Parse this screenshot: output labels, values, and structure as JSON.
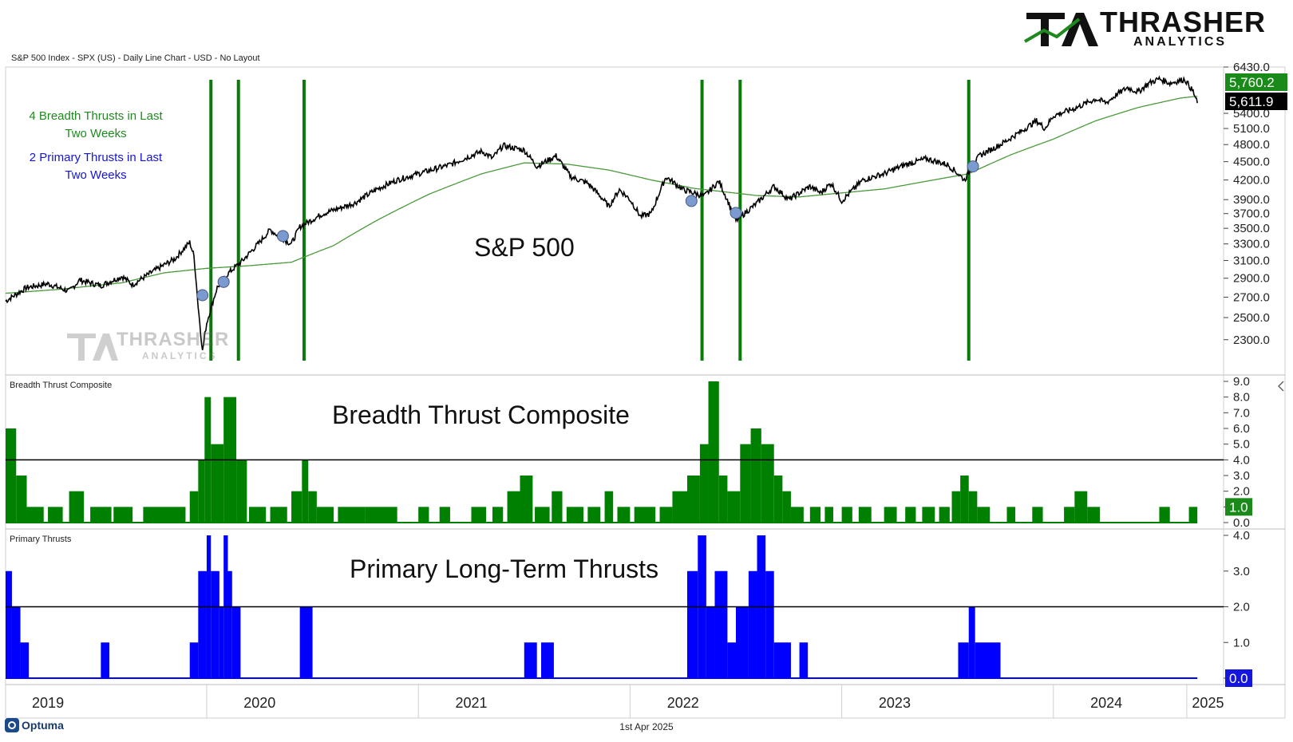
{
  "header": {
    "caption": "S&P 500 Index - SPX (US) - Daily Line Chart - USD - No Layout",
    "logo_main": "THRASHER",
    "logo_sub": "ANALYTICS",
    "logo_icon": "ta-monogram-icon"
  },
  "footer": {
    "date": "1st Apr 2025",
    "brand": "Optuma"
  },
  "colors": {
    "price": "#000000",
    "ma": "#4a9a3a",
    "breadth": "#008000",
    "primary": "#0000ff",
    "signal": "#0a7a0a",
    "dot": "#7a9ad0"
  },
  "chart_data": [
    {
      "type": "line",
      "panel": "price",
      "title": "S&P 500",
      "ylim": [
        2100,
        6430
      ],
      "y_ticks": [
        "6430.0",
        "5400.0",
        "5100.0",
        "4800.0",
        "4500.0",
        "4200.0",
        "3900.0",
        "3700.0",
        "3500.0",
        "3300.0",
        "3100.0",
        "2900.0",
        "2700.0",
        "2500.0",
        "2300.0"
      ],
      "last_labels": [
        {
          "value": "5,760.2",
          "series": "200-day moving average"
        },
        {
          "value": "5,611.9",
          "series": "S&P 500"
        }
      ],
      "annotations": [
        "4 Breadth Thrusts in Last\nTwo Weeks",
        "2 Primary Thrusts in Last\nTwo Weeks"
      ],
      "signal_lines_t": [
        2019.72,
        2019.85,
        2020.16,
        2022.04,
        2022.22,
        2023.3
      ],
      "dots": [
        {
          "t": 2019.68,
          "v": 2720
        },
        {
          "t": 2019.78,
          "v": 2860
        },
        {
          "t": 2020.06,
          "v": 3400
        },
        {
          "t": 2021.99,
          "v": 3880
        },
        {
          "t": 2022.2,
          "v": 3710
        },
        {
          "t": 2023.32,
          "v": 4420
        }
      ],
      "series": [
        {
          "name": "S&P 500",
          "points": [
            [
              2018.75,
              2660
            ],
            [
              2018.85,
              2800
            ],
            [
              2018.95,
              2840
            ],
            [
              2019.05,
              2760
            ],
            [
              2019.1,
              2880
            ],
            [
              2019.2,
              2820
            ],
            [
              2019.3,
              2920
            ],
            [
              2019.35,
              2830
            ],
            [
              2019.45,
              2980
            ],
            [
              2019.55,
              3120
            ],
            [
              2019.62,
              3320
            ],
            [
              2019.64,
              3150
            ],
            [
              2019.66,
              2600
            ],
            [
              2019.68,
              2200
            ],
            [
              2019.7,
              2450
            ],
            [
              2019.75,
              2800
            ],
            [
              2019.8,
              2950
            ],
            [
              2019.87,
              3100
            ],
            [
              2019.95,
              3320
            ],
            [
              2020.0,
              3480
            ],
            [
              2020.05,
              3380
            ],
            [
              2020.1,
              3300
            ],
            [
              2020.14,
              3520
            ],
            [
              2020.25,
              3700
            ],
            [
              2020.4,
              3850
            ],
            [
              2020.5,
              4050
            ],
            [
              2020.6,
              4200
            ],
            [
              2020.75,
              4350
            ],
            [
              2020.85,
              4450
            ],
            [
              2021.0,
              4680
            ],
            [
              2021.05,
              4560
            ],
            [
              2021.1,
              4780
            ],
            [
              2021.2,
              4700
            ],
            [
              2021.26,
              4420
            ],
            [
              2021.3,
              4500
            ],
            [
              2021.35,
              4600
            ],
            [
              2021.42,
              4250
            ],
            [
              2021.5,
              4150
            ],
            [
              2021.56,
              3950
            ],
            [
              2021.6,
              3800
            ],
            [
              2021.65,
              4050
            ],
            [
              2021.7,
              3900
            ],
            [
              2021.75,
              3660
            ],
            [
              2021.8,
              3700
            ],
            [
              2021.87,
              4250
            ],
            [
              2021.95,
              4050
            ],
            [
              2022.05,
              3950
            ],
            [
              2022.12,
              4180
            ],
            [
              2022.2,
              3600
            ],
            [
              2022.3,
              3850
            ],
            [
              2022.38,
              4100
            ],
            [
              2022.45,
              3900
            ],
            [
              2022.55,
              4100
            ],
            [
              2022.6,
              4000
            ],
            [
              2022.65,
              4150
            ],
            [
              2022.7,
              3880
            ],
            [
              2022.8,
              4200
            ],
            [
              2022.9,
              4300
            ],
            [
              2023.0,
              4450
            ],
            [
              2023.1,
              4550
            ],
            [
              2023.2,
              4450
            ],
            [
              2023.25,
              4300
            ],
            [
              2023.28,
              4200
            ],
            [
              2023.35,
              4600
            ],
            [
              2023.45,
              4800
            ],
            [
              2023.55,
              5050
            ],
            [
              2023.62,
              5250
            ],
            [
              2023.66,
              5100
            ],
            [
              2023.7,
              5350
            ],
            [
              2023.8,
              5500
            ],
            [
              2023.9,
              5700
            ],
            [
              2023.95,
              5620
            ],
            [
              2024.0,
              5800
            ],
            [
              2024.05,
              5950
            ],
            [
              2024.1,
              5850
            ],
            [
              2024.15,
              6050
            ],
            [
              2024.2,
              6150
            ],
            [
              2024.25,
              6050
            ],
            [
              2024.32,
              6140
            ],
            [
              2024.36,
              5860
            ],
            [
              2024.38,
              5611.9
            ]
          ]
        },
        {
          "name": "200-day moving average",
          "points": [
            [
              2018.75,
              2740
            ],
            [
              2019.0,
              2780
            ],
            [
              2019.3,
              2850
            ],
            [
              2019.5,
              2960
            ],
            [
              2019.7,
              3010
            ],
            [
              2019.9,
              3040
            ],
            [
              2020.1,
              3080
            ],
            [
              2020.3,
              3280
            ],
            [
              2020.5,
              3600
            ],
            [
              2020.75,
              3980
            ],
            [
              2021.0,
              4300
            ],
            [
              2021.2,
              4480
            ],
            [
              2021.4,
              4460
            ],
            [
              2021.6,
              4360
            ],
            [
              2021.8,
              4200
            ],
            [
              2022.0,
              4070
            ],
            [
              2022.3,
              3960
            ],
            [
              2022.5,
              3940
            ],
            [
              2022.7,
              4000
            ],
            [
              2022.9,
              4060
            ],
            [
              2023.1,
              4180
            ],
            [
              2023.3,
              4300
            ],
            [
              2023.5,
              4620
            ],
            [
              2023.7,
              4900
            ],
            [
              2023.9,
              5250
            ],
            [
              2024.1,
              5520
            ],
            [
              2024.3,
              5720
            ],
            [
              2024.38,
              5760.2
            ]
          ]
        }
      ]
    },
    {
      "type": "bar",
      "panel": "breadth",
      "title": "Breadth Thrust Composite",
      "ylim": [
        0,
        9
      ],
      "y_ticks": [
        "9.0",
        "8.0",
        "7.0",
        "6.0",
        "5.0",
        "4.0",
        "3.0",
        "2.0",
        "1.0",
        "0.0"
      ],
      "threshold": 4,
      "last_label": "1.0",
      "values": [
        [
          2018.75,
          2018.8,
          6
        ],
        [
          2018.8,
          2018.85,
          3
        ],
        [
          2018.85,
          2018.93,
          1
        ],
        [
          2018.95,
          2019.02,
          1
        ],
        [
          2019.05,
          2019.12,
          2
        ],
        [
          2019.15,
          2019.25,
          1
        ],
        [
          2019.26,
          2019.35,
          1
        ],
        [
          2019.4,
          2019.6,
          1
        ],
        [
          2019.62,
          2019.66,
          2
        ],
        [
          2019.66,
          2019.69,
          4
        ],
        [
          2019.69,
          2019.72,
          8
        ],
        [
          2019.72,
          2019.78,
          5
        ],
        [
          2019.78,
          2019.84,
          8
        ],
        [
          2019.84,
          2019.89,
          4
        ],
        [
          2019.9,
          2019.98,
          1
        ],
        [
          2020.0,
          2020.08,
          1
        ],
        [
          2020.1,
          2020.15,
          2
        ],
        [
          2020.15,
          2020.18,
          4
        ],
        [
          2020.18,
          2020.22,
          2
        ],
        [
          2020.22,
          2020.3,
          1
        ],
        [
          2020.32,
          2020.45,
          1
        ],
        [
          2020.45,
          2020.6,
          1
        ],
        [
          2020.7,
          2020.75,
          1
        ],
        [
          2020.8,
          2020.85,
          1
        ],
        [
          2020.95,
          2021.02,
          1
        ],
        [
          2021.05,
          2021.1,
          1
        ],
        [
          2021.12,
          2021.18,
          2
        ],
        [
          2021.18,
          2021.24,
          3
        ],
        [
          2021.25,
          2021.32,
          1
        ],
        [
          2021.33,
          2021.38,
          2
        ],
        [
          2021.4,
          2021.48,
          1
        ],
        [
          2021.5,
          2021.56,
          1
        ],
        [
          2021.58,
          2021.62,
          2
        ],
        [
          2021.64,
          2021.7,
          1
        ],
        [
          2021.72,
          2021.82,
          1
        ],
        [
          2021.84,
          2021.9,
          1
        ],
        [
          2021.9,
          2021.97,
          2
        ],
        [
          2021.97,
          2022.03,
          3
        ],
        [
          2022.03,
          2022.07,
          5
        ],
        [
          2022.07,
          2022.12,
          9
        ],
        [
          2022.12,
          2022.16,
          3
        ],
        [
          2022.16,
          2022.22,
          2
        ],
        [
          2022.22,
          2022.27,
          5
        ],
        [
          2022.27,
          2022.32,
          6
        ],
        [
          2022.32,
          2022.38,
          5
        ],
        [
          2022.38,
          2022.42,
          3
        ],
        [
          2022.42,
          2022.46,
          2
        ],
        [
          2022.46,
          2022.52,
          1
        ],
        [
          2022.55,
          2022.6,
          1
        ],
        [
          2022.62,
          2022.66,
          1
        ],
        [
          2022.7,
          2022.75,
          1
        ],
        [
          2022.78,
          2022.84,
          1
        ],
        [
          2022.9,
          2022.96,
          1
        ],
        [
          2023.0,
          2023.05,
          1
        ],
        [
          2023.08,
          2023.14,
          1
        ],
        [
          2023.16,
          2023.21,
          1
        ],
        [
          2023.22,
          2023.26,
          2
        ],
        [
          2023.26,
          2023.3,
          3
        ],
        [
          2023.3,
          2023.34,
          2
        ],
        [
          2023.34,
          2023.4,
          1
        ],
        [
          2023.48,
          2023.52,
          1
        ],
        [
          2023.6,
          2023.65,
          1
        ],
        [
          2023.75,
          2023.8,
          1
        ],
        [
          2023.8,
          2023.86,
          2
        ],
        [
          2023.86,
          2023.92,
          1
        ],
        [
          2024.2,
          2024.25,
          1
        ],
        [
          2024.34,
          2024.38,
          1
        ]
      ]
    },
    {
      "type": "bar",
      "panel": "primary",
      "title": "Primary Long-Term Thrusts",
      "panel_label": "Primary Thrusts",
      "ylim": [
        0,
        4
      ],
      "y_ticks": [
        "4.0",
        "3.0",
        "2.0",
        "1.0",
        "0.0"
      ],
      "threshold": 2,
      "last_label": "0.0",
      "values": [
        [
          2018.75,
          2018.78,
          3
        ],
        [
          2018.78,
          2018.82,
          2
        ],
        [
          2018.82,
          2018.86,
          1
        ],
        [
          2019.2,
          2019.24,
          1
        ],
        [
          2019.62,
          2019.66,
          1
        ],
        [
          2019.66,
          2019.7,
          3
        ],
        [
          2019.7,
          2019.72,
          4
        ],
        [
          2019.72,
          2019.76,
          3
        ],
        [
          2019.76,
          2019.78,
          2
        ],
        [
          2019.78,
          2019.8,
          4
        ],
        [
          2019.8,
          2019.82,
          3
        ],
        [
          2019.82,
          2019.86,
          2
        ],
        [
          2020.14,
          2020.2,
          2
        ],
        [
          2021.2,
          2021.26,
          1
        ],
        [
          2021.28,
          2021.34,
          1
        ],
        [
          2021.97,
          2022.02,
          3
        ],
        [
          2022.02,
          2022.06,
          4
        ],
        [
          2022.06,
          2022.1,
          2
        ],
        [
          2022.1,
          2022.16,
          3
        ],
        [
          2022.16,
          2022.2,
          1
        ],
        [
          2022.2,
          2022.26,
          2
        ],
        [
          2022.26,
          2022.3,
          3
        ],
        [
          2022.3,
          2022.34,
          4
        ],
        [
          2022.34,
          2022.38,
          3
        ],
        [
          2022.38,
          2022.46,
          1
        ],
        [
          2022.5,
          2022.54,
          1
        ],
        [
          2023.25,
          2023.3,
          1
        ],
        [
          2023.3,
          2023.33,
          2
        ],
        [
          2023.33,
          2023.35,
          1
        ],
        [
          2023.35,
          2023.45,
          1
        ]
      ]
    }
  ],
  "x_axis": {
    "t_range": [
      2018.75,
      2024.5
    ],
    "labels": [
      {
        "label": "2019",
        "t": 2018.95
      },
      {
        "label": "2020",
        "t": 2019.95
      },
      {
        "label": "2021",
        "t": 2020.95
      },
      {
        "label": "2022",
        "t": 2021.95
      },
      {
        "label": "2023",
        "t": 2022.95
      },
      {
        "label": "2024",
        "t": 2023.95
      },
      {
        "label": "2025",
        "t": 2024.43
      }
    ],
    "separators": [
      2018.75,
      2019.7,
      2020.7,
      2021.7,
      2022.7,
      2023.7,
      2024.33
    ]
  }
}
